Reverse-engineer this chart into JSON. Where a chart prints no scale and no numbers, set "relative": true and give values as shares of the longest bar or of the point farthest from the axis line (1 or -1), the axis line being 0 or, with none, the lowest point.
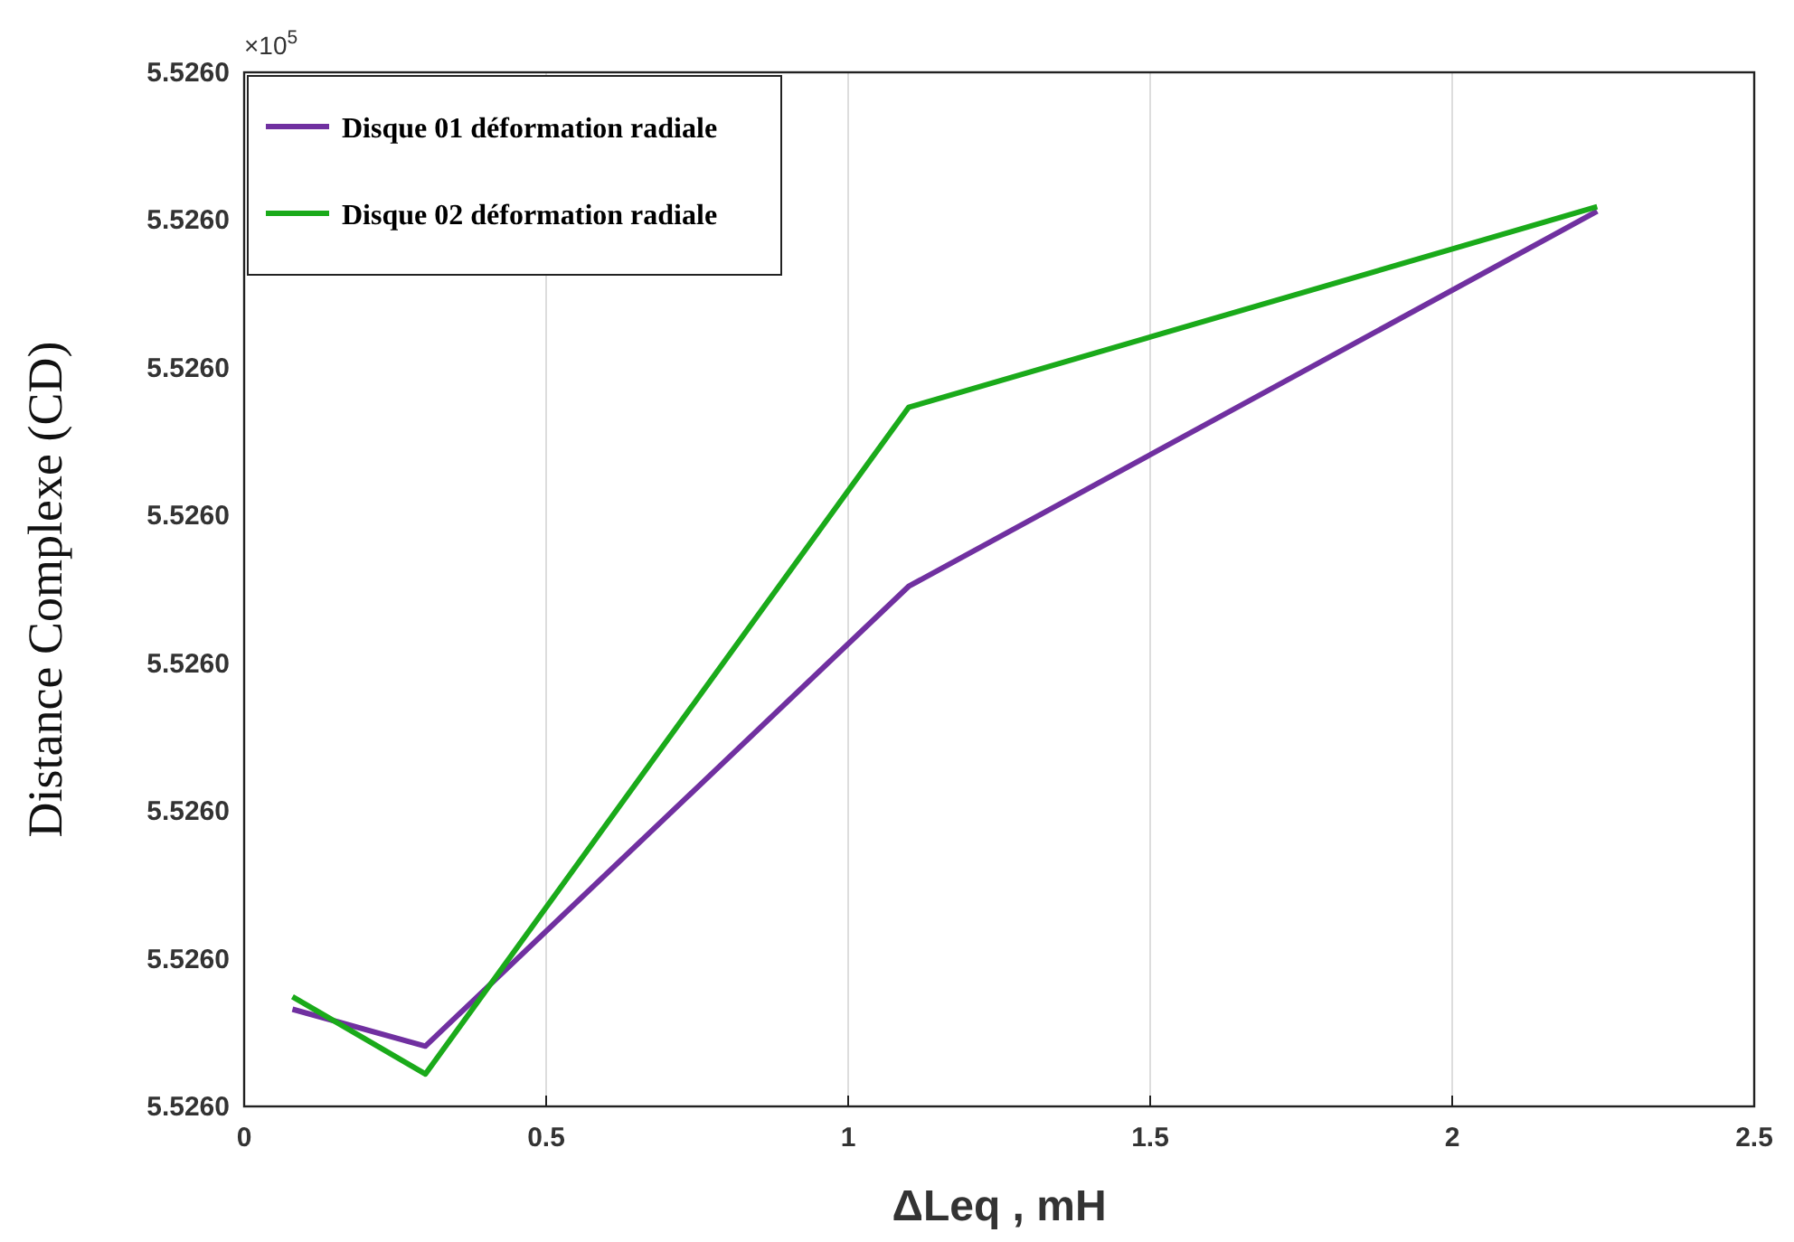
{
  "chart_data": {
    "type": "line",
    "xlabel": "ΔLeq , mH",
    "ylabel": "Distance Complexe (CD)",
    "relative": true,
    "annotations": [
      "×10$^{5}$",
      "5.5260",
      "5.5260",
      "5.5260",
      "5.5260",
      "5.5260",
      "5.5260",
      "5.5260",
      "5.5260"
    ],
    "x": [
      0.08,
      0.3,
      1.1,
      2.24
    ],
    "series": [
      {
        "name": "Disque 01 déformation radiale",
        "color": "#7030a0",
        "values": [
          0.108,
          0.067,
          0.578,
          0.995
        ]
      },
      {
        "name": "Disque 02 déformation radiale",
        "color": "#1aaa1a",
        "values": [
          0.122,
          0.036,
          0.777,
          1
        ]
      }
    ],
    "xlim": [
      0,
      2.5
    ],
    "xticks": [
      0,
      0.5,
      1,
      1.5,
      2,
      2.5
    ],
    "grid": true,
    "legend": "top left",
    "marker": "none",
    "line_style": "solid"
  }
}
